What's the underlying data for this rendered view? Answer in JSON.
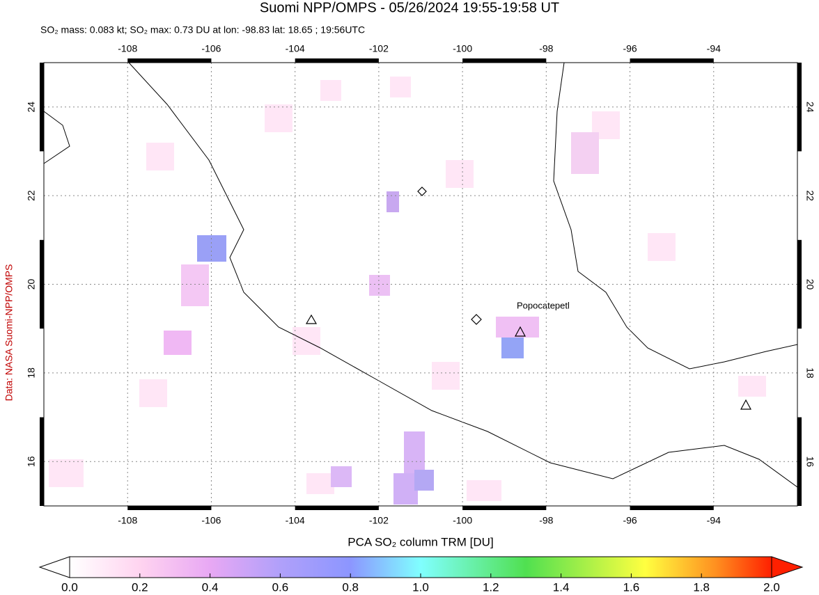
{
  "header": {
    "title": "Suomi NPP/OMPS - 05/26/2024 19:55-19:58 UT",
    "subtitle": "SO₂ mass: 0.083 kt; SO₂ max: 0.73 DU at lon: -98.83 lat: 18.65 ; 19:56UTC"
  },
  "map": {
    "lonlim": [
      -110,
      -92
    ],
    "latlim": [
      15,
      25
    ],
    "lon_ticks": [
      -108,
      -106,
      -104,
      -102,
      -100,
      -98,
      -96,
      -94
    ],
    "lat_ticks": [
      16,
      18,
      20,
      22,
      24
    ],
    "annotation": "Popocatepetl"
  },
  "credit": "Data: NASA Suomi-NPP/OMPS",
  "colorbar": {
    "label": "PCA SO₂ column TRM [DU]",
    "lim": [
      0,
      2
    ],
    "ticks": [
      {
        "value": 0,
        "label": "0.0"
      },
      {
        "value": 0.2,
        "label": "0.2"
      },
      {
        "value": 0.4,
        "label": "0.4"
      },
      {
        "value": 0.6,
        "label": "0.6"
      },
      {
        "value": 0.8,
        "label": "0.8"
      },
      {
        "value": 1,
        "label": "1.0"
      },
      {
        "value": 1.2,
        "label": "1.2"
      },
      {
        "value": 1.4,
        "label": "1.4"
      },
      {
        "value": 1.6,
        "label": "1.6"
      },
      {
        "value": 1.8,
        "label": "1.8"
      },
      {
        "value": 2,
        "label": "2.0"
      }
    ]
  }
}
